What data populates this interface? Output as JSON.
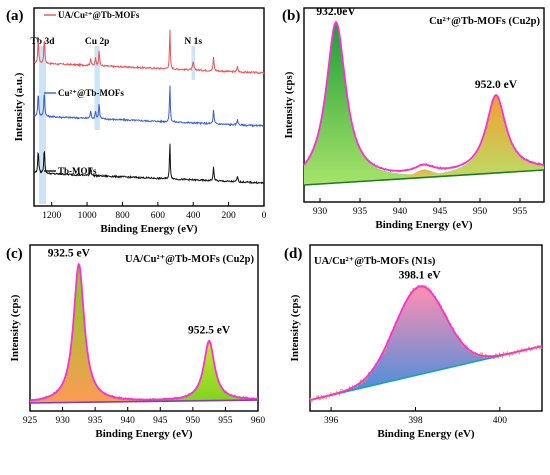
{
  "chart_data": [
    {
      "panel": "(a)",
      "type": "line",
      "title": "",
      "xlabel": "Binding Energy (eV)",
      "ylabel": "Intensity (a.u.)",
      "xlim": [
        1300,
        0
      ],
      "x_reversed": true,
      "xticks": [
        1200,
        1000,
        800,
        600,
        400,
        200,
        0
      ],
      "series": [
        {
          "name": "UA/Cu²⁺@Tb-MOFs",
          "color": "#e8575a",
          "offset": 2,
          "legend_pos": "top-left"
        },
        {
          "name": "Cu²⁺@Tb-MOFs",
          "color": "#3a5fd6",
          "offset": 1,
          "legend_pos": "middle-left"
        },
        {
          "name": "Tb-MOFs",
          "color": "#111111",
          "offset": 0,
          "legend_pos": "lower-left"
        }
      ],
      "peaks_eV": [
        1242,
        1276,
        932,
        532,
        400,
        285,
        150
      ],
      "annotations": [
        {
          "text": "Tb 3d",
          "band": [
            1272,
            1232
          ]
        },
        {
          "text": "Cu 2p",
          "band": [
            958,
            928
          ]
        },
        {
          "text": "N 1s",
          "band": [
            410,
            390
          ]
        }
      ],
      "highlight_color": "#bcd9f5"
    },
    {
      "panel": "(b)",
      "type": "area",
      "title": "Cu²⁺@Tb-MOFs (Cu2p)",
      "xlabel": "Binding Energy (eV)",
      "ylabel": "Intensity (cps)",
      "xlim": [
        928,
        958
      ],
      "xticks": [
        930,
        935,
        940,
        945,
        950,
        955
      ],
      "peaks": [
        {
          "label": "932.0eV",
          "center": 932.0,
          "height": 1.0,
          "fill_top": "#1d9e37",
          "fill_bottom": "#a7e36a"
        },
        {
          "label": "",
          "center": 943.0,
          "height": 0.05,
          "fill_top": "#d9b94a",
          "fill_bottom": "#e8d27a"
        },
        {
          "label": "952.0 eV",
          "center": 952.0,
          "height": 0.48,
          "fill_top": "#f0a030",
          "fill_bottom": "#b9e06a"
        }
      ],
      "envelope_color": "#ff2fd6",
      "background_color": "#1f7a2a"
    },
    {
      "panel": "(c)",
      "type": "area",
      "title": "UA/Cu²⁺@Tb-MOFs (Cu2p)",
      "xlabel": "Binding Energy (eV)",
      "ylabel": "Intensity (cps)",
      "xlim": [
        925,
        960
      ],
      "xticks": [
        925,
        930,
        935,
        940,
        945,
        950,
        955,
        960
      ],
      "peaks": [
        {
          "label": "932.5 eV",
          "center": 932.5,
          "height": 1.0,
          "fill_top": "#7fd21e",
          "fill_bottom": "#ff9a55"
        },
        {
          "label": "952.5 eV",
          "center": 952.5,
          "height": 0.43,
          "fill_top": "#c8e632",
          "fill_bottom": "#7fd21e"
        }
      ],
      "envelope_color": "#ff2fd6",
      "background_color": "#7a3fb0"
    },
    {
      "panel": "(d)",
      "type": "area",
      "title": "UA/Cu²⁺@Tb-MOFs (N1s)",
      "xlabel": "Binding Energy (eV)",
      "ylabel": "Intensity (cps)",
      "xlim": [
        395.5,
        401
      ],
      "xticks": [
        396,
        398,
        400
      ],
      "peaks": [
        {
          "label": "398.1 eV",
          "center": 398.1,
          "height": 1.0,
          "fill_top": "#ff8fb0",
          "fill_bottom": "#3d8fe0"
        }
      ],
      "envelope_color": "#ff2fd6",
      "background_color": "#1aa6a6",
      "raw_color": "#e89a58"
    }
  ]
}
